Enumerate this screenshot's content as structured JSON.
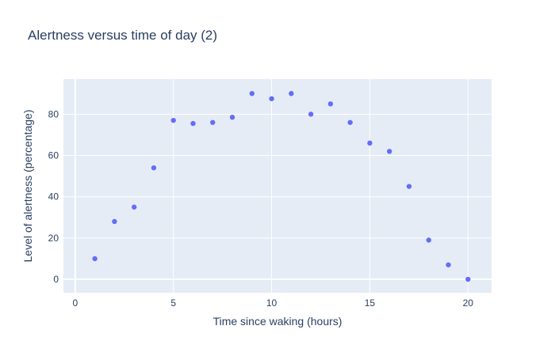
{
  "chart_data": {
    "type": "scatter",
    "title": "Alertness versus time of day (2)",
    "xlabel": "Time since waking (hours)",
    "ylabel": "Level of alertness (percentage)",
    "xlim": [
      -0.6,
      21.2
    ],
    "ylim": [
      -6.5,
      97
    ],
    "x_ticks": [
      0,
      5,
      10,
      15,
      20
    ],
    "y_ticks": [
      0,
      20,
      40,
      60,
      80
    ],
    "grid": true,
    "colors": {
      "plot_bg": "#e5ecf6",
      "grid": "#ffffff",
      "marker": "#636efa",
      "text": "#2a3f5f"
    },
    "series": [
      {
        "x": [
          1,
          2,
          3,
          4,
          5,
          6,
          7,
          8,
          9,
          10,
          11,
          12,
          13,
          14,
          15,
          16,
          17,
          18,
          19,
          20
        ],
        "y": [
          10,
          28,
          35,
          54,
          77,
          75.5,
          76,
          78.5,
          90,
          87.5,
          90,
          80,
          85,
          76,
          66,
          62,
          45,
          19,
          7,
          0
        ]
      }
    ]
  }
}
